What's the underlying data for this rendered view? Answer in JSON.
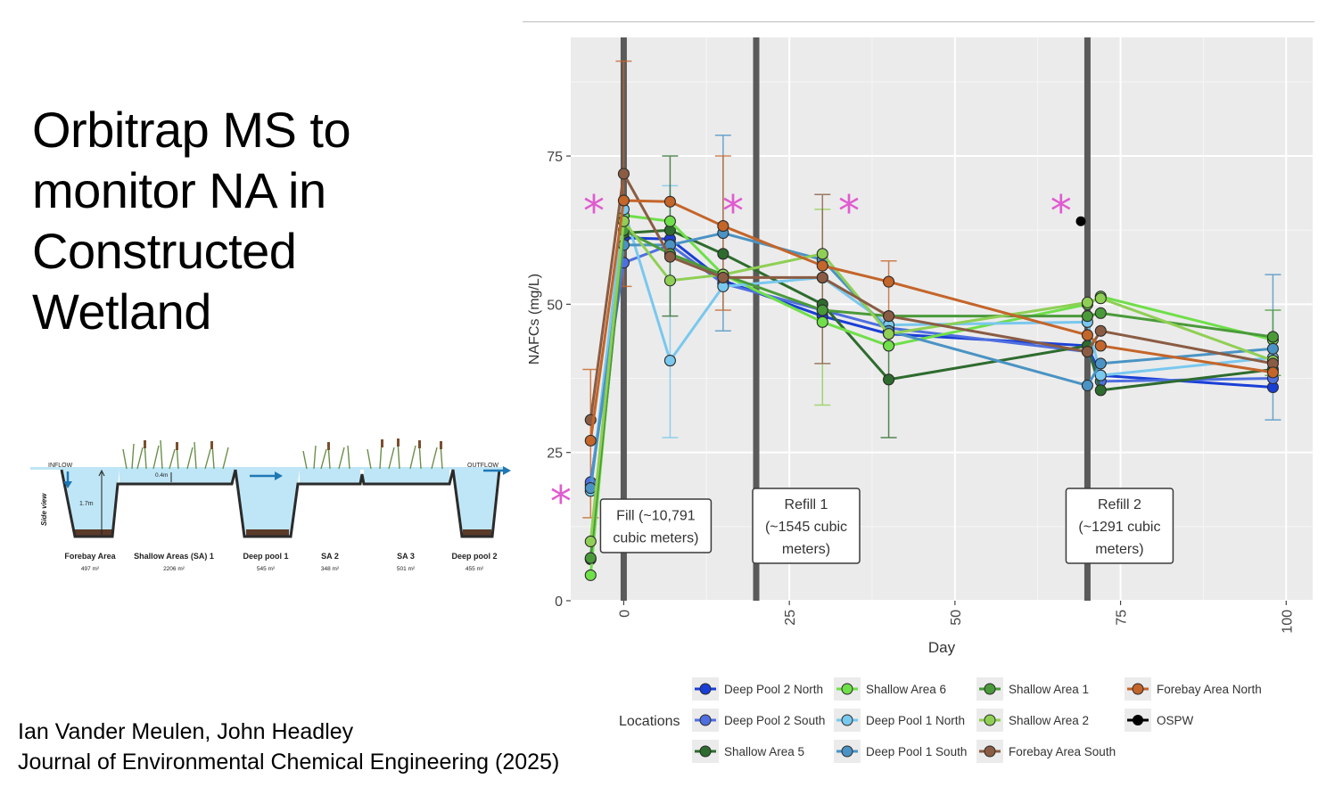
{
  "slide": {
    "title_lines": [
      "Orbitrap MS to",
      "monitor NA in",
      "Constructed",
      "Wetland"
    ],
    "authors": "Ian Vander Meulen, John Headley",
    "journal": "Journal of Environmental Chemical Engineering (2025)"
  },
  "diagram": {
    "side_view": "Side view",
    "inflow": "INFLOW",
    "outflow": "OUTFLOW",
    "depth_deep": "1.7m",
    "depth_shallow": "0.4m",
    "zones": [
      {
        "name": "Forebay Area",
        "area": "497 m²"
      },
      {
        "name": "Shallow Areas (SA) 1",
        "area": "2206 m²"
      },
      {
        "name": "Deep pool 1",
        "area": "545 m²"
      },
      {
        "name": "SA 2",
        "area": "348 m²"
      },
      {
        "name": "SA 3",
        "area": "501 m²"
      },
      {
        "name": "Deep pool 2",
        "area": "455 m²"
      }
    ]
  },
  "chart_data": {
    "type": "line",
    "xlabel": "Day",
    "ylabel": "NAFCs (mg/L)",
    "xlim": [
      -8,
      104
    ],
    "ylim": [
      0,
      95
    ],
    "xticks": [
      0,
      25,
      50,
      75,
      100
    ],
    "yticks": [
      0,
      25,
      50,
      75
    ],
    "grid": true,
    "legend_title": "Locations",
    "legend_position": "bottom",
    "events": [
      {
        "x": 0,
        "label": "Fill (~10,791 cubic meters)",
        "lines": [
          "Fill (~10,791",
          "cubic meters)"
        ]
      },
      {
        "x": 20,
        "label": "Refill 1 (~1545 cubic meters)",
        "lines": [
          "Refill 1",
          "(~1545 cubic",
          "meters)"
        ]
      },
      {
        "x": 70,
        "label": "Refill 2 (~1291 cubic meters)",
        "lines": [
          "Refill 2",
          "(~1291 cubic",
          "meters)"
        ]
      }
    ],
    "asterisks": [
      {
        "x": -9.5,
        "y": 17.5,
        "text": "*"
      },
      {
        "x": -4.5,
        "y": 66.5,
        "text": "*"
      },
      {
        "x": 16.5,
        "y": 66.5,
        "text": "*"
      },
      {
        "x": 34,
        "y": 66.5,
        "text": "*"
      },
      {
        "x": 66,
        "y": 66.5,
        "text": "*"
      }
    ],
    "series": [
      {
        "name": "Deep Pool 2 North",
        "color": "#1a3fd6",
        "x": [
          -5,
          0,
          7,
          15,
          30,
          40,
          70,
          72,
          98
        ],
        "y": [
          19.5,
          61.2,
          61.0,
          54.0,
          48.0,
          45.0,
          43.0,
          38.0,
          36.0
        ]
      },
      {
        "name": "Deep Pool 2 South",
        "color": "#4f6fe0",
        "x": [
          -5,
          0,
          7,
          15,
          30,
          40,
          70,
          72,
          98
        ],
        "y": [
          20.0,
          57.0,
          60.0,
          53.5,
          49.0,
          46.0,
          42.0,
          37.0,
          37.5
        ]
      },
      {
        "name": "Shallow Area 5",
        "color": "#2e6b2e",
        "x": [
          -5,
          0,
          7,
          15,
          30,
          40,
          70,
          72,
          98
        ],
        "y": [
          7.0,
          62.0,
          62.5,
          58.5,
          50.0,
          37.3,
          43.0,
          35.5,
          39.0
        ]
      },
      {
        "name": "Shallow Area 6",
        "color": "#6fdf4a",
        "x": [
          -5,
          0,
          7,
          15,
          30,
          40,
          70,
          72,
          98
        ],
        "y": [
          4.3,
          65.0,
          64.0,
          55.0,
          47.0,
          43.0,
          50.0,
          51.3,
          44.0
        ]
      },
      {
        "name": "Deep Pool 1 North",
        "color": "#79c8ee",
        "x": [
          -5,
          0,
          7,
          15,
          30,
          40,
          70,
          72,
          98
        ],
        "y": [
          18.5,
          66.0,
          40.5,
          53.0,
          54.5,
          46.5,
          47.0,
          38.0,
          41.0
        ]
      },
      {
        "name": "Deep Pool 1 South",
        "color": "#4a93c4",
        "x": [
          -5,
          0,
          7,
          15,
          30,
          40,
          70,
          72,
          98
        ],
        "y": [
          19.0,
          60.0,
          60.0,
          62.0,
          57.5,
          45.5,
          36.3,
          40.0,
          42.5
        ]
      },
      {
        "name": "Shallow Area 1",
        "color": "#4a9a3a",
        "x": [
          -5,
          0,
          7,
          15,
          30,
          40,
          70,
          72,
          98
        ],
        "y": [
          7.2,
          62.5,
          58.5,
          55.0,
          49.0,
          48.0,
          48.0,
          48.5,
          44.5
        ]
      },
      {
        "name": "Shallow Area 2",
        "color": "#8fcf55",
        "x": [
          -5,
          0,
          7,
          15,
          30,
          40,
          70,
          72,
          98
        ],
        "y": [
          10.0,
          64.0,
          54.0,
          55.0,
          58.5,
          45.0,
          50.3,
          51.0,
          40.5
        ]
      },
      {
        "name": "Forebay Area South",
        "color": "#8a5c43",
        "x": [
          -5,
          0,
          7,
          15,
          30,
          40,
          70,
          72,
          98
        ],
        "y": [
          30.5,
          72.0,
          58.0,
          54.5,
          54.5,
          48.0,
          42.0,
          45.5,
          40.0
        ]
      },
      {
        "name": "Forebay Area North",
        "color": "#c4652a",
        "x": [
          -5,
          0,
          7,
          15,
          30,
          40,
          70,
          72,
          98
        ],
        "y": [
          27.0,
          67.5,
          67.3,
          63.2,
          56.5,
          53.8,
          44.8,
          43.0,
          38.5
        ]
      },
      {
        "name": "OSPW",
        "color": "#000000",
        "x": [
          69
        ],
        "y": [
          64.0
        ]
      }
    ],
    "error_bars": [
      {
        "x": 0,
        "low": 53,
        "high": 91,
        "color": "#c4652a"
      },
      {
        "x": -5,
        "low": 14,
        "high": 39,
        "color": "#c4652a"
      },
      {
        "x": 7,
        "low": 27.5,
        "high": 70,
        "color": "#79c8ee"
      },
      {
        "x": 7,
        "low": 48,
        "high": 75,
        "color": "#2e6b2e"
      },
      {
        "x": 15,
        "low": 45.5,
        "high": 78.5,
        "color": "#4a93c4"
      },
      {
        "x": 15,
        "low": 49,
        "high": 75,
        "color": "#c4652a"
      },
      {
        "x": 30,
        "low": 33,
        "high": 66,
        "color": "#8fcf55"
      },
      {
        "x": 30,
        "low": 40,
        "high": 68.5,
        "color": "#8a5c43"
      },
      {
        "x": 40,
        "low": 27.5,
        "high": 48,
        "color": "#2e6b2e"
      },
      {
        "x": 40,
        "low": 48,
        "high": 57.3,
        "color": "#c4652a"
      },
      {
        "x": 98,
        "low": 30.5,
        "high": 55,
        "color": "#4a93c4"
      },
      {
        "x": 98,
        "low": 38,
        "high": 49,
        "color": "#4a9a3a"
      }
    ],
    "legend_order": [
      "Deep Pool 2 North",
      "Shallow Area 6",
      "Shallow Area 1",
      "Forebay Area North",
      "Deep Pool 2 South",
      "Deep Pool 1 North",
      "Shallow Area 2",
      "OSPW",
      "Shallow Area 5",
      "Deep Pool 1 South",
      "Forebay Area South"
    ]
  }
}
